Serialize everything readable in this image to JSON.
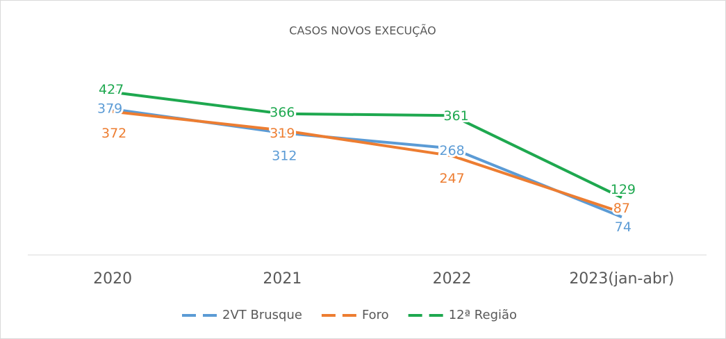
{
  "chart_data": {
    "type": "line",
    "title": "CASOS NOVOS EXECUÇÃO",
    "categories": [
      "2020",
      "2021",
      "2022",
      "2023(jan-abr)"
    ],
    "series": [
      {
        "name": "2VT Brusque",
        "color": "#5b9bd5",
        "values": [
          379,
          312,
          268,
          74
        ]
      },
      {
        "name": "Foro",
        "color": "#ed7d31",
        "values": [
          372,
          319,
          247,
          87
        ]
      },
      {
        "name": "12ª Região",
        "color": "#1ea84f",
        "values": [
          427,
          366,
          361,
          129
        ]
      }
    ],
    "ylim": [
      0,
      450
    ],
    "legend": "bottom"
  }
}
